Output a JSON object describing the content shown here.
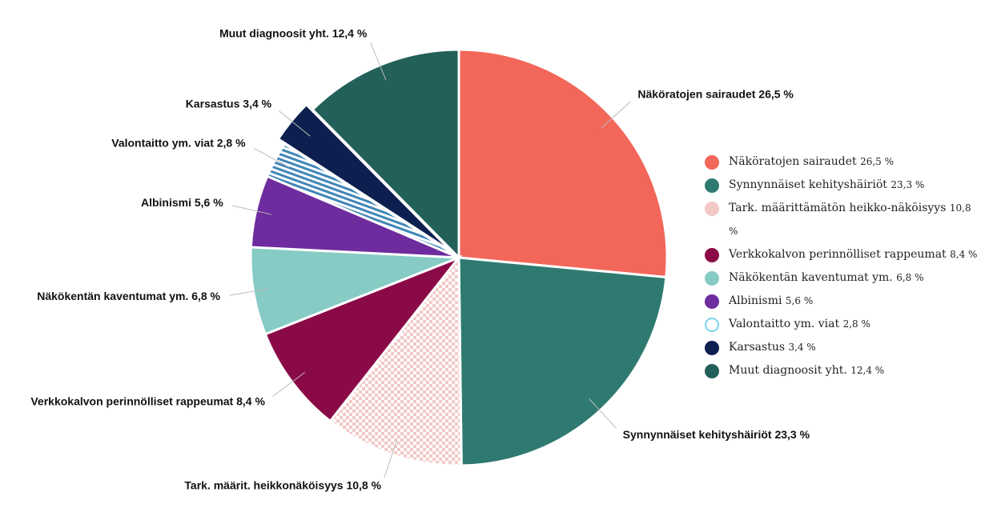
{
  "chart_data": {
    "type": "pie",
    "categories": [
      "Näköratojen sairaudet",
      "Synnynnäiset kehityshäiriöt",
      "Tark. määrittämätön heikko-näköisyys",
      "Verkkokalvon perinnölliset rappeumat",
      "Näkökentän kaventumat ym.",
      "Albinismi",
      "Valontaitto ym. viat",
      "Karsastus",
      "Muut diagnoosit yht."
    ],
    "values": [
      26.5,
      23.3,
      10.8,
      8.4,
      6.8,
      5.6,
      2.8,
      3.4,
      12.4
    ],
    "value_labels": [
      "26,5 %",
      "23,3 %",
      "10,8 %",
      "8,4 %",
      "6,8 %",
      "5,6 %",
      "2,8 %",
      "3,4 %",
      "12,4 %"
    ],
    "callout_labels": [
      "Näköratojen sairaudet 26,5 %",
      "Synnynnäiset kehityshäiriöt 23,3 %",
      "Tark. määrit. heikkonäköisyys 10,8 %",
      "Verkkokalvon perinnölliset rappeumat 8,4 %",
      "Näkökentän kaventumat ym. 6,8 %",
      "Albinismi 5,6 %",
      "Valontaitto ym. viat 2,8 %",
      "Karsastus 3,4 %",
      "Muut diagnoosit yht. 12,4 %"
    ],
    "colors": [
      "#f2675a",
      "#2f7a70",
      "#f3c9c5",
      "#8a0a47",
      "#86cbc4",
      "#6e2c9e",
      "#7dd3e8",
      "#0d1f4f",
      "#23605a"
    ],
    "patterns": [
      null,
      null,
      "check",
      null,
      null,
      null,
      "stripe",
      null,
      null
    ],
    "explode": [
      false,
      false,
      false,
      false,
      false,
      false,
      false,
      true,
      false
    ],
    "legend": true
  }
}
